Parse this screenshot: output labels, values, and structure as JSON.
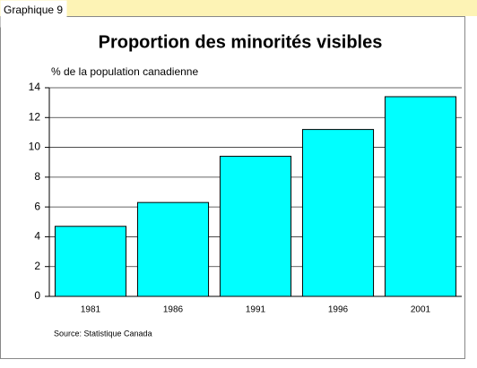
{
  "label": "Graphique 9",
  "chart_data": {
    "type": "bar",
    "title": "Proportion des minorités visibles",
    "y_label": "% de la population canadienne",
    "source": "Source: Statistique Canada",
    "categories": [
      "1981",
      "1986",
      "1991",
      "1996",
      "2001"
    ],
    "values": [
      4.7,
      6.3,
      9.4,
      11.2,
      13.4
    ],
    "color": "#00ffff",
    "ylim": [
      0,
      14
    ],
    "yticks": [
      0,
      2,
      4,
      6,
      8,
      10,
      12,
      14
    ],
    "grid": true
  }
}
